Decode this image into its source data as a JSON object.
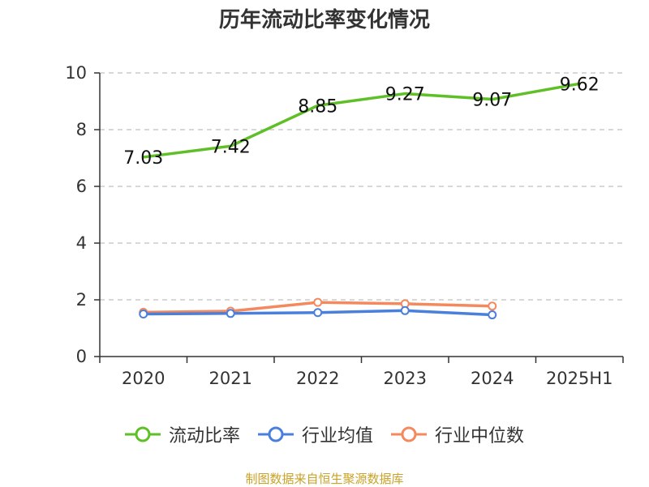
{
  "title": "历年流动比率变化情况",
  "footer": "制图数据来自恒生聚源数据库",
  "colors": {
    "current_ratio": "#5fbf26",
    "industry_avg": "#4a7fdc",
    "industry_median": "#f4895e",
    "grid": "#cccccc",
    "axis": "#333333",
    "footer": "#c9a227"
  },
  "chart_data": {
    "type": "line",
    "title": "历年流动比率变化情况",
    "categories": [
      "2020",
      "2021",
      "2022",
      "2023",
      "2024",
      "2025H1"
    ],
    "ylim": [
      0,
      10
    ],
    "yticks": [
      0,
      2,
      4,
      6,
      8,
      10
    ],
    "grid": true,
    "legend_position": "bottom",
    "series": [
      {
        "name": "流动比率",
        "values": [
          7.03,
          7.42,
          8.85,
          9.27,
          9.07,
          9.62
        ],
        "labels": [
          "7.03",
          "7.42",
          "8.85",
          "9.27",
          "9.07",
          "9.62"
        ],
        "show_markers": false,
        "show_labels": true
      },
      {
        "name": "行业均值",
        "values": [
          1.5,
          1.52,
          1.55,
          1.62,
          1.47,
          null
        ],
        "show_markers": true,
        "show_labels": false
      },
      {
        "name": "行业中位数",
        "values": [
          1.56,
          1.6,
          1.91,
          1.86,
          1.78,
          null
        ],
        "show_markers": true,
        "show_labels": false
      }
    ]
  }
}
